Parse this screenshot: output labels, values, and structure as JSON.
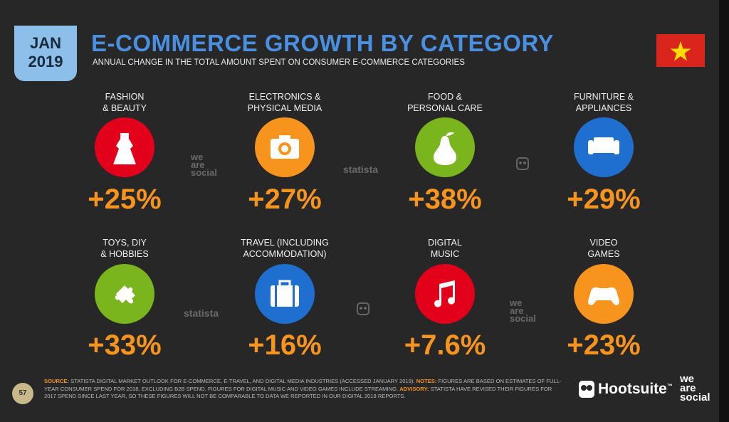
{
  "header": {
    "date_month": "JAN",
    "date_year": "2019",
    "title": "E-COMMERCE GROWTH BY CATEGORY",
    "subtitle": "ANNUAL CHANGE IN THE TOTAL AMOUNT SPENT ON CONSUMER E-COMMERCE CATEGORIES"
  },
  "items": [
    {
      "label": [
        "FASHION",
        "& BEAUTY"
      ],
      "value": "+25%"
    },
    {
      "label": [
        "ELECTRONICS &",
        "PHYSICAL MEDIA"
      ],
      "value": "+27%"
    },
    {
      "label": [
        "FOOD &",
        "PERSONAL CARE"
      ],
      "value": "+38%"
    },
    {
      "label": [
        "FURNITURE &",
        "APPLIANCES"
      ],
      "value": "+29%"
    },
    {
      "label": [
        "TOYS, DIY",
        "& HOBBIES"
      ],
      "value": "+33%"
    },
    {
      "label": [
        "TRAVEL (INCLUDING",
        "ACCOMMODATION)"
      ],
      "value": "+16%"
    },
    {
      "label": [
        "DIGITAL",
        "MUSIC"
      ],
      "value": "+7.6%"
    },
    {
      "label": [
        "VIDEO",
        "GAMES"
      ],
      "value": "+23%"
    }
  ],
  "watermarks": {
    "we_are_social": [
      "we",
      "are",
      "social"
    ],
    "statista": "statista"
  },
  "footer": {
    "page": "57",
    "source_label": "SOURCE:",
    "source_text": "STATISTA DIGITAL MARKET OUTLOOK FOR E-COMMERCE, E-TRAVEL, AND DIGITAL MEDIA INDUSTRIES (ACCESSED JANUARY 2019).",
    "notes_label": "NOTES:",
    "notes_text": "FIGURES ARE BASED ON ESTIMATES OF FULL-YEAR CONSUMER SPEND FOR 2018, EXCLUDING B2B SPEND. FIGURES FOR DIGITAL MUSIC AND VIDEO GAMES INCLUDE STREAMING.",
    "advisory_label": "ADVISORY:",
    "advisory_text": "STATISTA HAVE REVISED THEIR FIGURES FOR 2017 SPEND SINCE LAST YEAR, SO THESE FIGURES WILL NOT BE COMPARABLE TO DATA WE REPORTED IN OUR DIGITAL 2018 REPORTS.",
    "brand": "Hootsuite",
    "brand_mark": "™",
    "partner": [
      "we",
      "are",
      "social"
    ]
  }
}
